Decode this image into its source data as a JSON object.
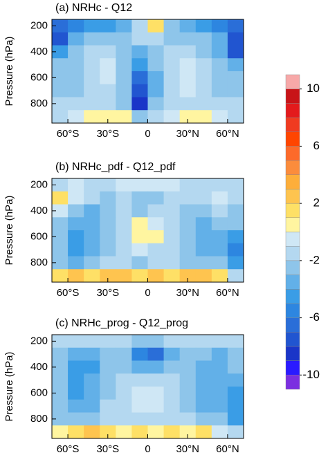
{
  "chart_data": [
    {
      "type": "contour",
      "title": "(a) NRHc - Q12",
      "y_label": "Pressure (hPa)",
      "x": [
        -66,
        -54,
        -42,
        -30,
        -18,
        -6,
        6,
        18,
        30,
        42,
        54,
        66
      ],
      "y": [
        200,
        300,
        400,
        500,
        600,
        700,
        800,
        900
      ],
      "xlim": [
        -72,
        72
      ],
      "ylim": [
        150,
        950
      ],
      "xticks": [
        {
          "value": -60,
          "label": "60°S"
        },
        {
          "value": -30,
          "label": "30°S"
        },
        0,
        {
          "value": 30,
          "label": "30°N"
        },
        {
          "value": 60,
          "label": "60°N"
        }
      ],
      "yticks": [
        200,
        400,
        600,
        800
      ],
      "values": [
        [
          -7,
          -6,
          -5,
          -5,
          -4,
          -2,
          1,
          -3,
          -4,
          -5,
          -6,
          -7
        ],
        [
          -8,
          -4,
          -3,
          -3,
          -3,
          -2,
          -2,
          -3,
          -3,
          -3,
          -4,
          -8
        ],
        [
          -5,
          -3,
          -2,
          -2,
          -3,
          -4,
          -3,
          -2,
          -2,
          -3,
          -4,
          -8
        ],
        [
          -3,
          -3,
          -2,
          -1,
          -3,
          -5,
          -3,
          -2,
          -1,
          -2,
          -3,
          -4
        ],
        [
          -3,
          -3,
          -2,
          -1,
          -3,
          -7,
          -4,
          -2,
          -1,
          -2,
          -3,
          -3
        ],
        [
          -3,
          -3,
          -2,
          -2,
          -3,
          -8,
          -4,
          -2,
          -1,
          -2,
          -3,
          -3
        ],
        [
          -2,
          -2,
          -2,
          -2,
          -3,
          -9,
          -3,
          -2,
          -2,
          -2,
          -2,
          -2
        ],
        [
          -2,
          -1,
          0.5,
          0.5,
          0.5,
          -3,
          -2,
          -1,
          0.5,
          0.5,
          -1,
          -2
        ]
      ]
    },
    {
      "type": "contour",
      "title": "(b) NRHc_pdf - Q12_pdf",
      "y_label": "Pressure (hPa)",
      "x": [
        -66,
        -54,
        -42,
        -30,
        -18,
        -6,
        6,
        18,
        30,
        42,
        54,
        66
      ],
      "y": [
        200,
        300,
        400,
        500,
        600,
        700,
        800,
        900
      ],
      "xlim": [
        -72,
        72
      ],
      "ylim": [
        150,
        950
      ],
      "xticks": [
        {
          "value": -60,
          "label": "60°S"
        },
        {
          "value": -30,
          "label": "30°S"
        },
        0,
        {
          "value": 30,
          "label": "30°N"
        },
        {
          "value": 60,
          "label": "60°N"
        }
      ],
      "yticks": [
        200,
        400,
        600,
        800
      ],
      "values": [
        [
          -2,
          -1,
          -2,
          -2,
          -1,
          -1,
          -1,
          -1,
          -2,
          -2,
          -2,
          -2
        ],
        [
          1.5,
          -1,
          -2,
          -3,
          -2,
          -3,
          -3,
          -2,
          -2,
          -2,
          -1,
          -2
        ],
        [
          -1,
          -3,
          -4,
          -3,
          -2,
          -3,
          -2,
          -2,
          -3,
          -3,
          -2,
          -3
        ],
        [
          -3,
          -4,
          -4,
          -3,
          -2,
          0.5,
          -1,
          -2,
          -3,
          -4,
          -3,
          -3
        ],
        [
          -3,
          -5,
          -4,
          -3,
          -2,
          0.5,
          0.5,
          -2,
          -3,
          -4,
          -4,
          -5
        ],
        [
          -3,
          -5,
          -4,
          -3,
          -2,
          -1,
          -2,
          -2,
          -3,
          -4,
          -4,
          -6
        ],
        [
          -3,
          -4,
          -3,
          -2,
          -2,
          -3,
          -2,
          -2,
          -3,
          -3,
          -3,
          -5
        ],
        [
          1.5,
          2.5,
          1.5,
          2.5,
          2.5,
          1.5,
          2.5,
          1.5,
          2.5,
          2.5,
          1.5,
          -2
        ]
      ]
    },
    {
      "type": "contour",
      "title": "(c) NRHc_prog - Q12_prog",
      "y_label": "Pressure (hPa)",
      "x": [
        -66,
        -54,
        -42,
        -30,
        -18,
        -6,
        6,
        18,
        30,
        42,
        54,
        66
      ],
      "y": [
        200,
        300,
        400,
        500,
        600,
        700,
        800,
        900
      ],
      "xlim": [
        -72,
        72
      ],
      "ylim": [
        150,
        950
      ],
      "xticks": [
        {
          "value": -60,
          "label": "60°S"
        },
        {
          "value": -30,
          "label": "30°S"
        },
        0,
        {
          "value": 30,
          "label": "30°N"
        },
        {
          "value": 60,
          "label": "60°N"
        }
      ],
      "yticks": [
        200,
        400,
        600,
        800
      ],
      "values": [
        [
          -2,
          -2,
          -2,
          -2,
          -2,
          -3,
          -3,
          -2,
          -2,
          -2,
          -2,
          -2
        ],
        [
          -3,
          -4,
          -4,
          -3,
          -3,
          -6,
          -7,
          -4,
          -3,
          -3,
          -4,
          -3
        ],
        [
          -3,
          -5,
          -5,
          -3,
          -3,
          -4,
          -4,
          -3,
          -3,
          -4,
          -4,
          -3
        ],
        [
          -3,
          -5,
          -4,
          -3,
          -2,
          -2,
          -2,
          -2,
          -3,
          -4,
          -4,
          -4
        ],
        [
          -3,
          -5,
          -4,
          -3,
          -2,
          -1,
          -1,
          -2,
          -3,
          -4,
          -4,
          -5
        ],
        [
          -3,
          -4,
          -4,
          -2,
          -2,
          -1,
          -1,
          -2,
          -3,
          -4,
          -4,
          -5
        ],
        [
          -3,
          -3,
          -3,
          -2,
          -2,
          -2,
          -2,
          -2,
          -2,
          -3,
          -3,
          -5
        ],
        [
          0.5,
          1.5,
          2.5,
          1.5,
          0.5,
          1.5,
          0.5,
          1.5,
          0.5,
          1.5,
          -1,
          -2
        ]
      ]
    }
  ],
  "colorbar": {
    "levels": [
      -11,
      -10,
      -9,
      -8,
      -7,
      -6,
      -5,
      -4,
      -3,
      -2,
      -1,
      0,
      1,
      2,
      3,
      4,
      5,
      6,
      7,
      8,
      9,
      10,
      11
    ],
    "colors": [
      "#7b2fe0",
      "#2a1aff",
      "#1a35c8",
      "#2155d0",
      "#2a6ed8",
      "#2d86e0",
      "#3a9de6",
      "#62b0e8",
      "#8ec5ea",
      "#b4d8f0",
      "#cfe7f5",
      "#fff5a0",
      "#fee066",
      "#fec44f",
      "#fdae3a",
      "#fb8c3c",
      "#fd6a2a",
      "#ff4500",
      "#f03b20",
      "#e31a1c",
      "#c81418",
      "#f7a8a8"
    ],
    "ticks": [
      -10,
      -6,
      -2,
      2,
      6,
      10
    ]
  }
}
